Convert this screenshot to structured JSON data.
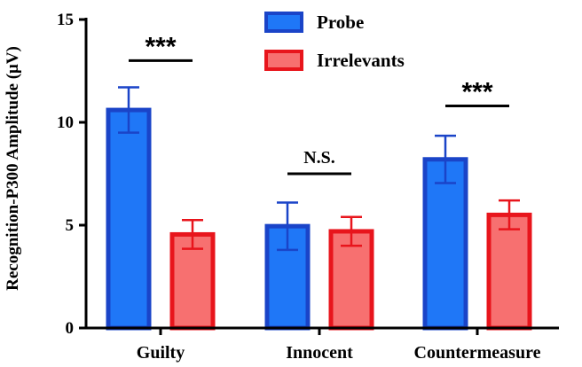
{
  "chart_data": {
    "type": "bar",
    "ylabel": "Recognition-P300 Amplitude  (μV)",
    "ylim": [
      0,
      15
    ],
    "yticks": [
      "0",
      "5",
      "10",
      "15"
    ],
    "categories": [
      "Guilty",
      "Innocent",
      "Countermeasure"
    ],
    "series": [
      {
        "name": "Probe",
        "values": [
          10.6,
          4.95,
          8.2
        ],
        "errors": [
          1.1,
          1.15,
          1.15
        ],
        "color": "#1f77f7",
        "edge": "#1a44c8"
      },
      {
        "name": "Irrelevants",
        "values": [
          4.55,
          4.7,
          5.5
        ],
        "errors": [
          0.7,
          0.7,
          0.7
        ],
        "color": "#f77070",
        "edge": "#e8151c"
      }
    ],
    "significance": [
      {
        "category": "Guilty",
        "label": "***",
        "y": 13.0
      },
      {
        "category": "Innocent",
        "label": "N.S.",
        "y": 7.5
      },
      {
        "category": "Countermeasure",
        "label": "***",
        "y": 10.8
      }
    ],
    "legend_position": "top-center",
    "grid": false
  }
}
